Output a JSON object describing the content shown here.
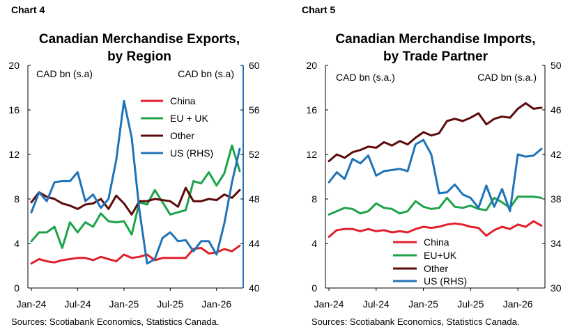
{
  "chart_data": [
    {
      "type": "line",
      "chart_label": "Chart 4",
      "title_line1": "Canadian Merchandise Exports,",
      "title_line2": "by Region",
      "left_unit": "CAD bn (s.a)",
      "right_unit": "CAD bn (s.a)",
      "yticks_left": [
        "0",
        "4",
        "8",
        "12",
        "16",
        "20"
      ],
      "yticks_right": [
        "40",
        "44",
        "48",
        "52",
        "56",
        "60"
      ],
      "ylim_left": [
        0,
        20
      ],
      "ylim_right": [
        40,
        60
      ],
      "xticks": [
        "Jan-24",
        "Jul-24",
        "Jan-25",
        "Jul-25",
        "Jan-26"
      ],
      "x_months": 27,
      "legend_position": "top-right",
      "source": "Sources: Scotiabank Economics, Statistics Canada.",
      "series": [
        {
          "name": "China",
          "color": "#e0202b",
          "axis": "left",
          "values": [
            2.2,
            2.6,
            2.4,
            2.3,
            2.5,
            2.6,
            2.7,
            2.7,
            2.5,
            2.8,
            2.6,
            2.4,
            3.0,
            2.7,
            2.8,
            3.0,
            2.5,
            2.7,
            2.7,
            2.7,
            2.7,
            3.5,
            3.6,
            3.1,
            3.2,
            3.5,
            3.3,
            3.8
          ]
        },
        {
          "name": "EU + UK",
          "color": "#1ca34a",
          "axis": "left",
          "values": [
            4.2,
            5.0,
            5.0,
            5.5,
            3.6,
            5.9,
            5.0,
            5.9,
            5.5,
            6.7,
            6.0,
            5.9,
            6.0,
            4.8,
            7.7,
            7.5,
            8.8,
            7.7,
            6.6,
            6.8,
            7.0,
            9.6,
            9.4,
            10.4,
            9.2,
            10.3,
            12.8,
            10.5
          ]
        },
        {
          "name": "Other",
          "color": "#5c0a0a",
          "axis": "left",
          "values": [
            7.7,
            8.6,
            8.2,
            8.0,
            7.6,
            7.4,
            7.1,
            7.5,
            7.6,
            8.0,
            7.1,
            8.3,
            7.6,
            6.6,
            7.8,
            7.8,
            8.0,
            7.9,
            7.8,
            7.3,
            9.0,
            7.8,
            7.8,
            8.0,
            7.9,
            8.4,
            8.1,
            8.8
          ]
        },
        {
          "name": "US (RHS)",
          "color": "#1f73b7",
          "axis": "right",
          "values": [
            46.8,
            48.6,
            47.8,
            49.5,
            49.6,
            49.6,
            50.4,
            47.8,
            48.4,
            47.2,
            48.0,
            51.5,
            56.8,
            53.5,
            47.0,
            42.2,
            42.6,
            44.5,
            45.0,
            44.2,
            44.3,
            43.3,
            44.2,
            44.2,
            43.0,
            45.8,
            49.5,
            52.5
          ]
        }
      ]
    },
    {
      "type": "line",
      "chart_label": "Chart 5",
      "title_line1": "Canadian Merchandise Imports,",
      "title_line2": "by Trade Partner",
      "left_unit": "CAD bn (s.a.)",
      "right_unit": "CAD bn (s.a.)",
      "yticks_left": [
        "0",
        "4",
        "8",
        "12",
        "16",
        "20"
      ],
      "yticks_right": [
        "30",
        "34",
        "38",
        "42",
        "46",
        "50"
      ],
      "ylim_left": [
        0,
        20
      ],
      "ylim_right": [
        30,
        50
      ],
      "xticks": [
        "Jan-24",
        "Jul-24",
        "Jan-25",
        "Jul-25",
        "Jan-26"
      ],
      "x_months": 27,
      "legend_position": "bottom-left",
      "source": "Sources: Scotiabank Economics, Statistics Canada.",
      "series": [
        {
          "name": "China",
          "color": "#e0202b",
          "axis": "left",
          "values": [
            4.6,
            5.2,
            5.3,
            5.3,
            5.1,
            5.3,
            5.1,
            5.2,
            5.0,
            5.1,
            5.0,
            5.3,
            5.5,
            5.4,
            5.5,
            5.7,
            5.8,
            5.7,
            5.5,
            5.4,
            4.7,
            5.2,
            5.5,
            5.3,
            5.7,
            5.5,
            6.0,
            5.6
          ]
        },
        {
          "name": "EU+UK",
          "color": "#1ca34a",
          "axis": "left",
          "values": [
            6.6,
            6.9,
            7.2,
            7.1,
            6.7,
            6.9,
            7.6,
            7.2,
            7.1,
            6.7,
            6.9,
            7.8,
            7.3,
            7.1,
            7.2,
            8.1,
            7.3,
            7.2,
            7.4,
            7.1,
            7.0,
            8.1,
            7.7,
            7.2,
            8.2,
            8.2,
            8.2,
            8.1
          ]
        },
        {
          "name": "Other",
          "color": "#5c0a0a",
          "axis": "left",
          "values": [
            11.4,
            12.0,
            11.7,
            12.2,
            12.4,
            12.7,
            12.6,
            13.1,
            12.8,
            13.2,
            12.9,
            13.5,
            14.0,
            13.7,
            13.9,
            15.0,
            15.2,
            15.0,
            15.3,
            15.7,
            14.7,
            15.2,
            15.4,
            15.3,
            16.1,
            16.6,
            16.1,
            16.2
          ]
        },
        {
          "name": "US (RHS)",
          "color": "#1f73b7",
          "axis": "right",
          "values": [
            39.5,
            40.4,
            39.8,
            41.6,
            41.2,
            41.9,
            40.1,
            40.5,
            40.6,
            40.7,
            40.5,
            42.9,
            43.3,
            42.0,
            38.5,
            38.6,
            39.3,
            38.4,
            38.1,
            37.2,
            39.2,
            37.3,
            38.9,
            36.9,
            42.0,
            41.8,
            41.9,
            42.5
          ]
        }
      ]
    }
  ]
}
